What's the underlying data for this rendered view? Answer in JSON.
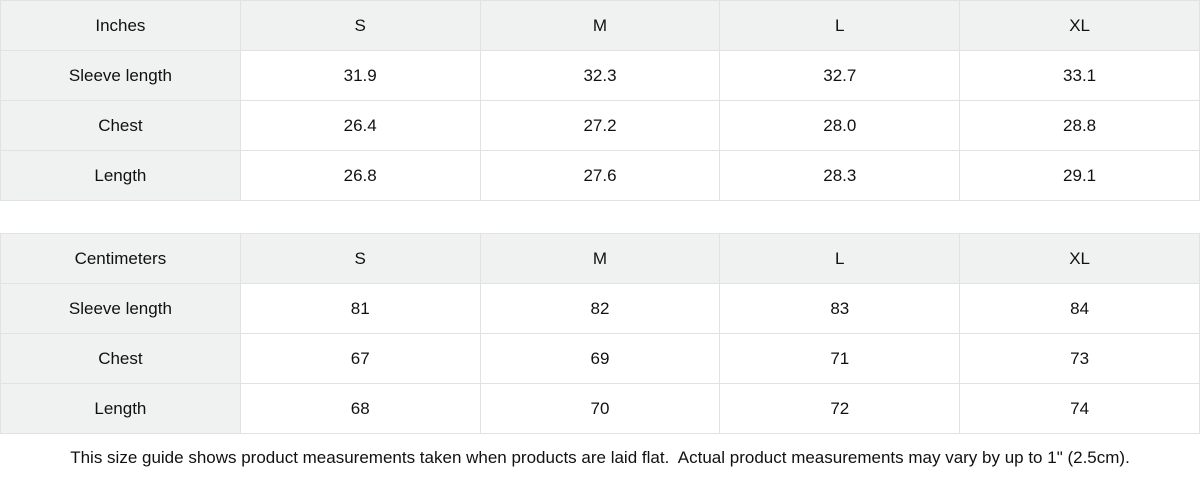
{
  "size_guide": {
    "sections": [
      {
        "unit_label": "Inches",
        "columns": [
          "S",
          "M",
          "L",
          "XL"
        ],
        "rows": [
          {
            "label": "Sleeve length",
            "values": [
              "31.9",
              "32.3",
              "32.7",
              "33.1"
            ]
          },
          {
            "label": "Chest",
            "values": [
              "26.4",
              "27.2",
              "28.0",
              "28.8"
            ]
          },
          {
            "label": "Length",
            "values": [
              "26.8",
              "27.6",
              "28.3",
              "29.1"
            ]
          }
        ]
      },
      {
        "unit_label": "Centimeters",
        "columns": [
          "S",
          "M",
          "L",
          "XL"
        ],
        "rows": [
          {
            "label": "Sleeve length",
            "values": [
              "81",
              "82",
              "83",
              "84"
            ]
          },
          {
            "label": "Chest",
            "values": [
              "67",
              "69",
              "71",
              "73"
            ]
          },
          {
            "label": "Length",
            "values": [
              "68",
              "70",
              "72",
              "74"
            ]
          }
        ]
      }
    ],
    "footnote": "This size guide shows product measurements taken when products are laid flat.  Actual product measurements may vary by up to 1\" (2.5cm).",
    "colors": {
      "header_bg": "#f0f1f1",
      "border": "#e2e2e2",
      "text": "#111111",
      "background": "#ffffff"
    }
  }
}
